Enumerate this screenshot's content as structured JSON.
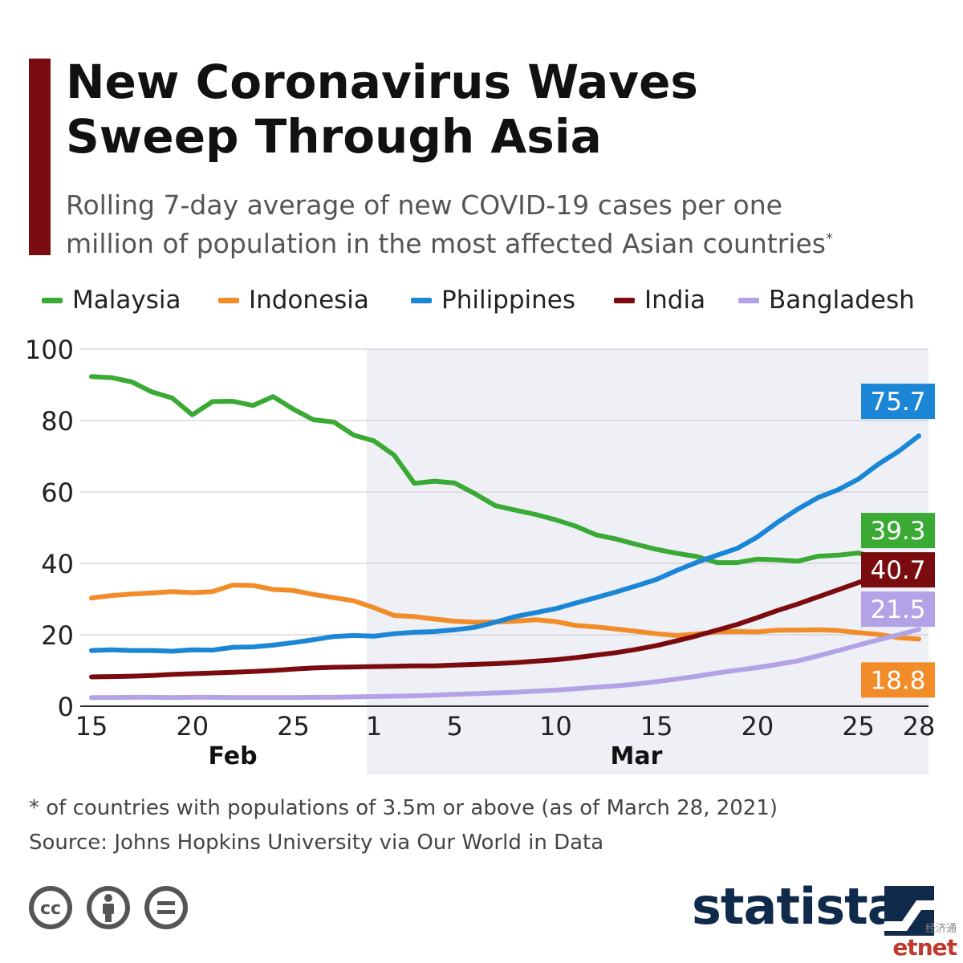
{
  "header": {
    "title_line1": "New Coronavirus Waves",
    "title_line2": "Sweep Through Asia",
    "subtitle_line1": "Rolling 7-day average of new COVID-19 cases per one",
    "subtitle_line2": "million of population in the most affected Asian countries",
    "subtitle_marker": "*"
  },
  "footer": {
    "note": "* of countries with populations of 3.5m or above (as of March 28, 2021)",
    "source": "Source: Johns Hopkins University via Our World in Data",
    "brand": "statista",
    "watermark_cjk": "经济通",
    "watermark": "etnet",
    "license_icons": [
      "cc-icon",
      "attribution-icon",
      "no-derivatives-icon"
    ]
  },
  "chart_data": {
    "type": "line",
    "ylim": [
      0,
      100
    ],
    "yticks": [
      0,
      20,
      40,
      60,
      80,
      100
    ],
    "x_start": "2021-02-15",
    "x_end": "2021-03-28",
    "x_ticks": [
      {
        "date": "2021-02-15",
        "label": "15"
      },
      {
        "date": "2021-02-20",
        "label": "20"
      },
      {
        "date": "2021-02-25",
        "label": "25"
      },
      {
        "date": "2021-03-01",
        "label": "1"
      },
      {
        "date": "2021-03-05",
        "label": "5"
      },
      {
        "date": "2021-03-10",
        "label": "10"
      },
      {
        "date": "2021-03-15",
        "label": "15"
      },
      {
        "date": "2021-03-20",
        "label": "20"
      },
      {
        "date": "2021-03-25",
        "label": "25"
      },
      {
        "date": "2021-03-28",
        "label": "28"
      }
    ],
    "month_labels": [
      {
        "label": "Feb",
        "date": "2021-02-22"
      },
      {
        "label": "Mar",
        "date": "2021-03-14"
      }
    ],
    "shaded_period": {
      "from": "2021-03-01",
      "to": "2021-03-28"
    },
    "grid": true,
    "legend_placement": "top",
    "series": [
      {
        "name": "Malaysia",
        "color": "#3aaa35",
        "end_label": "39.3",
        "values": [
          92.3,
          92.0,
          90.8,
          88.0,
          86.3,
          81.6,
          85.3,
          85.4,
          84.2,
          86.7,
          83.2,
          80.2,
          79.6,
          75.9,
          74.3,
          70.3,
          62.4,
          63.0,
          62.5,
          59.5,
          56.2,
          54.9,
          53.7,
          52.2,
          50.4,
          48.0,
          46.8,
          45.3,
          43.9,
          42.8,
          41.9,
          40.2,
          40.2,
          41.2,
          41.0,
          40.6,
          42.0,
          42.3,
          42.9,
          41.4,
          39.3,
          39.3
        ]
      },
      {
        "name": "Indonesia",
        "color": "#f28c28",
        "end_label": "18.8",
        "values": [
          30.3,
          31.0,
          31.4,
          31.7,
          32.1,
          31.8,
          32.1,
          33.9,
          33.8,
          32.7,
          32.4,
          31.3,
          30.4,
          29.5,
          27.6,
          25.4,
          25.1,
          24.4,
          23.8,
          23.5,
          23.6,
          23.8,
          24.2,
          23.7,
          22.6,
          22.2,
          21.6,
          21.0,
          20.3,
          19.8,
          20.2,
          20.8,
          20.9,
          20.8,
          21.3,
          21.3,
          21.4,
          21.2,
          20.6,
          20.1,
          19.2,
          18.8
        ]
      },
      {
        "name": "Philippines",
        "color": "#1b86d6",
        "end_label": "75.7",
        "values": [
          15.6,
          15.8,
          15.6,
          15.6,
          15.4,
          15.8,
          15.7,
          16.5,
          16.6,
          17.1,
          17.8,
          18.6,
          19.5,
          19.8,
          19.6,
          20.3,
          20.7,
          20.9,
          21.4,
          22.1,
          23.5,
          25.1,
          26.2,
          27.3,
          28.9,
          30.4,
          32.0,
          33.7,
          35.5,
          38.0,
          40.3,
          42.3,
          44.2,
          47.4,
          51.5,
          55.2,
          58.4,
          60.6,
          63.6,
          67.8,
          71.4,
          75.7
        ]
      },
      {
        "name": "India",
        "color": "#7a0c10",
        "end_label": "40.7",
        "values": [
          8.2,
          8.3,
          8.4,
          8.6,
          8.9,
          9.1,
          9.3,
          9.5,
          9.7,
          10.0,
          10.4,
          10.7,
          10.9,
          11.0,
          11.1,
          11.2,
          11.3,
          11.3,
          11.5,
          11.7,
          11.9,
          12.2,
          12.6,
          13.0,
          13.6,
          14.3,
          15.0,
          15.9,
          17.0,
          18.3,
          19.7,
          21.3,
          22.9,
          24.8,
          26.8,
          28.6,
          30.6,
          32.6,
          34.6,
          36.6,
          38.7,
          40.7
        ]
      },
      {
        "name": "Bangladesh",
        "color": "#b3a3e6",
        "end_label": "21.5",
        "values": [
          2.4,
          2.4,
          2.5,
          2.5,
          2.4,
          2.5,
          2.5,
          2.4,
          2.4,
          2.4,
          2.4,
          2.5,
          2.5,
          2.6,
          2.7,
          2.8,
          2.9,
          3.1,
          3.3,
          3.5,
          3.7,
          3.9,
          4.2,
          4.5,
          4.9,
          5.3,
          5.7,
          6.2,
          6.9,
          7.6,
          8.4,
          9.3,
          10.1,
          10.8,
          11.7,
          12.7,
          14.1,
          15.6,
          17.1,
          18.6,
          20.0,
          21.5
        ]
      }
    ]
  }
}
